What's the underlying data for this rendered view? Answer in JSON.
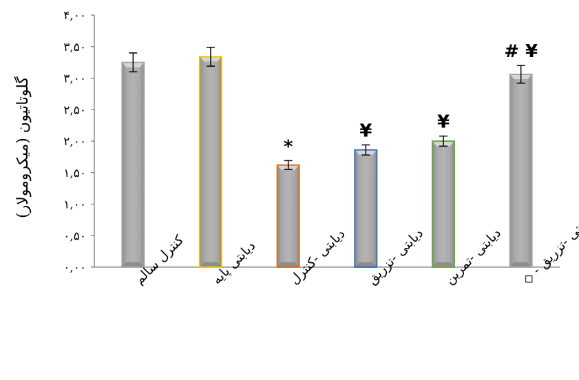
{
  "chart_data": {
    "type": "bar",
    "ylabel": "گلوتاتیون (میکرومولار)",
    "ylim": [
      0,
      4
    ],
    "y_ticks": [
      "۰,۰۰",
      "۰,۵۰",
      "۱,۰۰",
      "۱,۵۰",
      "۲,۰۰",
      "۲,۵۰",
      "۳,۰۰",
      "۳,۵۰",
      "۴,۰۰"
    ],
    "grid": false,
    "categories": [
      "کنترل سالم",
      "دیابتی پایه",
      "دیابتی -کنترل",
      "دیابتی -تزریق",
      "دیابتی -تمرین",
      "دیابتی -تزریق - ◇"
    ],
    "values": [
      3.25,
      3.34,
      1.62,
      1.86,
      2.0,
      3.06
    ],
    "errors": [
      0.15,
      0.15,
      0.07,
      0.08,
      0.08,
      0.14
    ],
    "annotations": [
      "",
      "",
      "*",
      "¥",
      "¥",
      "# ¥"
    ],
    "colors": {
      "bar_fill": "#a6a6a6",
      "outlines": [
        "#a6a6a6",
        "#f2c200",
        "#e46c0a",
        "#3d6bc0",
        "#5ab030",
        "#a6a6a6"
      ]
    }
  }
}
